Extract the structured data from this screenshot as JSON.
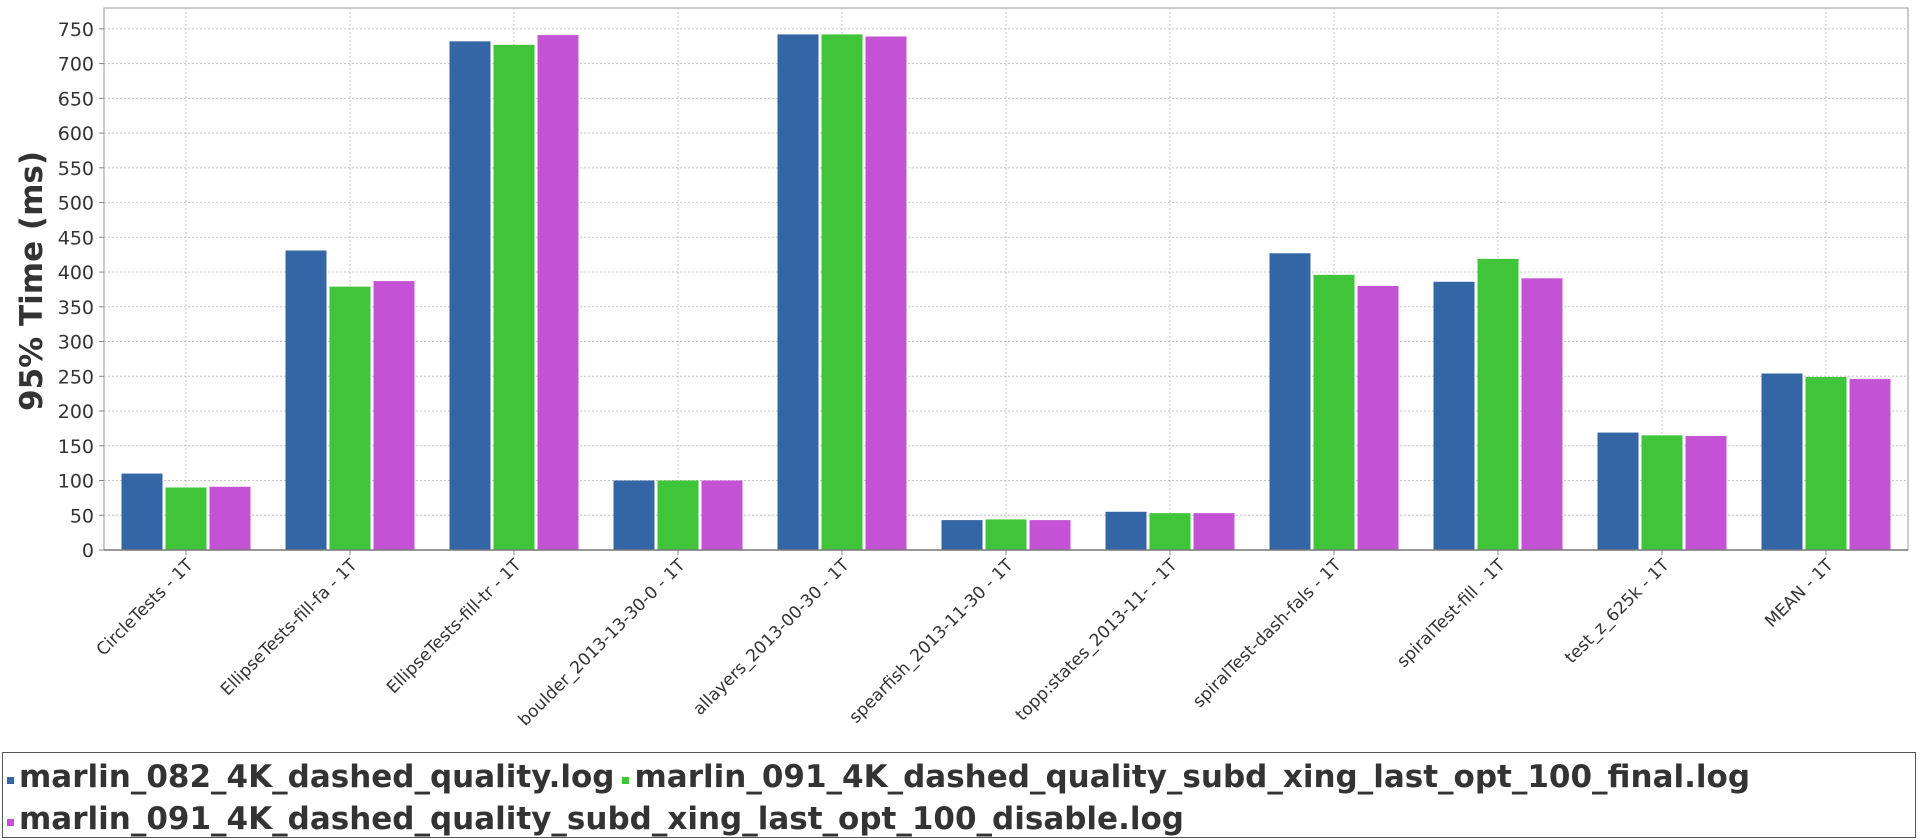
{
  "chart_data": {
    "type": "bar",
    "title": "",
    "xlabel": "",
    "ylabel": "95% Time (ms)",
    "ylim": [
      0,
      780
    ],
    "yticks": [
      0,
      50,
      100,
      150,
      200,
      250,
      300,
      350,
      400,
      450,
      500,
      550,
      600,
      650,
      700,
      750
    ],
    "grid": true,
    "legend_position": "bottom",
    "categories": [
      "CircleTests - 1T",
      "EllipseTests-fill-fa - 1T",
      "EllipseTests-fill-tr - 1T",
      "boulder_2013-13-30-0 - 1T",
      "allayers_2013-00-30 - 1T",
      "spearfish_2013-11-30 - 1T",
      "topp:states_2013-11- - 1T",
      "spiralTest-dash-fals - 1T",
      "spiralTest-fill - 1T",
      "test_z_625k - 1T",
      "MEAN - 1T"
    ],
    "series": [
      {
        "name": "marlin_082_4K_dashed_quality.log",
        "color": "#3465a4",
        "values": [
          110,
          431,
          732,
          100,
          742,
          43,
          55,
          427,
          386,
          169,
          254
        ]
      },
      {
        "name": "marlin_091_4K_dashed_quality_subd_xing_last_opt_100_final.log",
        "color": "#3fc43a",
        "values": [
          90,
          379,
          727,
          100,
          742,
          44,
          53,
          396,
          419,
          165,
          249
        ]
      },
      {
        "name": "marlin_091_4K_dashed_quality_subd_xing_last_opt_100_disable.log",
        "color": "#c353d4",
        "values": [
          91,
          387,
          741,
          100,
          739,
          43,
          53,
          380,
          391,
          164,
          246
        ]
      }
    ]
  }
}
